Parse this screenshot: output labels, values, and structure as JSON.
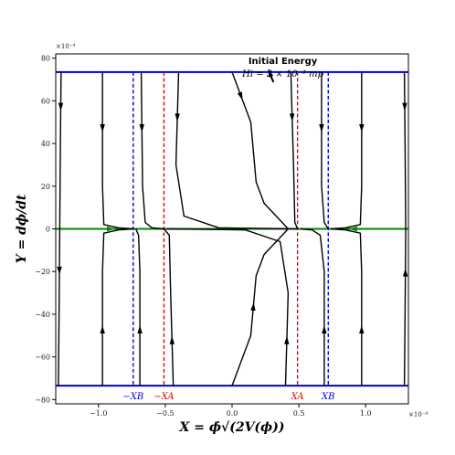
{
  "chart_data": {
    "type": "line",
    "title": "",
    "xlabel": "X = ϕ̇√(2V(ϕ))",
    "ylabel": "Y = dϕ/dt",
    "x_multiplier": "×10⁻⁴",
    "y_multiplier": "×10⁻⁴",
    "xlim": [
      -1.32,
      1.32
    ],
    "ylim": [
      -82,
      82
    ],
    "x_ticks": [
      -1.0,
      -0.5,
      0.0,
      0.5,
      1.0
    ],
    "x_tick_labels": [
      "−1.0",
      "−0.5",
      "0.0",
      "0.5",
      "1.0"
    ],
    "y_ticks": [
      -80,
      -60,
      -40,
      -20,
      0,
      20,
      40,
      60,
      80
    ],
    "y_tick_labels": [
      "−80",
      "−60",
      "−40",
      "−20",
      "0",
      "20",
      "40",
      "60",
      "80"
    ],
    "grid": false,
    "annotation": {
      "title": "Initial Energy",
      "subtitle": "Hi = 3 × 10⁻³ mp",
      "arrow_from": [
        0.32,
        70
      ],
      "arrow_to": [
        0.28,
        74
      ]
    },
    "horizontal_lines": [
      {
        "y": 73.5,
        "color": "#0000dd"
      },
      {
        "y": -73.5,
        "color": "#0000dd"
      },
      {
        "y": 0,
        "color": "#008800"
      }
    ],
    "vertical_lines": [
      {
        "x": -0.74,
        "color": "#0000dd",
        "label": "−XB"
      },
      {
        "x": -0.51,
        "color": "#dd0000",
        "label": "−XA"
      },
      {
        "x": 0.49,
        "color": "#dd0000",
        "label": "XA"
      },
      {
        "x": 0.72,
        "color": "#0000dd",
        "label": "XB"
      }
    ],
    "trajectories": [
      {
        "points": [
          [
            -1.28,
            73.5
          ],
          [
            -1.285,
            40
          ],
          [
            -1.29,
            0
          ]
        ],
        "arrow_at": 1,
        "arrow_dir": "down"
      },
      {
        "points": [
          [
            -1.29,
            0
          ],
          [
            -1.295,
            -40
          ],
          [
            -1.3,
            -73.5
          ]
        ],
        "arrow_at": 1,
        "arrow_dir": "down"
      },
      {
        "points": [
          [
            -0.97,
            73.5
          ],
          [
            -0.97,
            20
          ],
          [
            -0.96,
            2
          ],
          [
            -0.85,
            0.5
          ],
          [
            -0.74,
            0
          ]
        ],
        "arrow_at": 1,
        "arrow_dir": "down"
      },
      {
        "points": [
          [
            -0.97,
            -73.5
          ],
          [
            -0.97,
            -20
          ],
          [
            -0.96,
            -2
          ],
          [
            -0.85,
            -0.5
          ],
          [
            -0.74,
            0
          ]
        ],
        "arrow_at": 1,
        "arrow_dir": "up"
      },
      {
        "points": [
          [
            -0.68,
            73.5
          ],
          [
            -0.67,
            20
          ],
          [
            -0.65,
            3
          ],
          [
            -0.6,
            0.5
          ],
          [
            -0.51,
            0
          ]
        ],
        "arrow_at": 1,
        "arrow_dir": "down"
      },
      {
        "points": [
          [
            -0.69,
            -73.5
          ],
          [
            -0.69,
            -20
          ],
          [
            -0.7,
            -3
          ],
          [
            -0.72,
            0
          ]
        ],
        "arrow_at": 1,
        "arrow_dir": "up"
      },
      {
        "points": [
          [
            -0.4,
            73.5
          ],
          [
            -0.42,
            30
          ],
          [
            -0.36,
            6
          ],
          [
            -0.1,
            0.5
          ],
          [
            0.49,
            0
          ]
        ],
        "arrow_at": 1,
        "arrow_dir": "down"
      },
      {
        "points": [
          [
            -0.44,
            -73.5
          ],
          [
            -0.46,
            -30
          ],
          [
            -0.47,
            -3
          ],
          [
            -0.51,
            0
          ]
        ],
        "arrow_at": 1,
        "arrow_dir": "up"
      },
      {
        "points": [
          [
            0.0,
            73.5
          ],
          [
            0.14,
            50
          ],
          [
            0.18,
            22
          ],
          [
            0.24,
            12
          ],
          [
            0.36,
            4
          ],
          [
            0.42,
            0
          ]
        ],
        "arrow_at": 1,
        "arrow_dir": "down"
      },
      {
        "points": [
          [
            0.42,
            0
          ],
          [
            0.36,
            -4
          ],
          [
            0.24,
            -12
          ],
          [
            0.18,
            -22
          ],
          [
            0.14,
            -50
          ],
          [
            0.0,
            -73.5
          ]
        ],
        "arrow_at": 4,
        "arrow_dir": "up"
      },
      {
        "points": [
          [
            0.44,
            73.5
          ],
          [
            0.46,
            30
          ],
          [
            0.47,
            3
          ],
          [
            0.49,
            0
          ]
        ],
        "arrow_at": 1,
        "arrow_dir": "down"
      },
      {
        "points": [
          [
            0.4,
            -73.5
          ],
          [
            0.42,
            -30
          ],
          [
            0.36,
            -6
          ],
          [
            0.1,
            -0.5
          ],
          [
            -0.49,
            0
          ]
        ],
        "arrow_at": 1,
        "arrow_dir": "up"
      },
      {
        "points": [
          [
            0.67,
            73.5
          ],
          [
            0.67,
            20
          ],
          [
            0.69,
            3
          ],
          [
            0.72,
            0
          ]
        ],
        "arrow_at": 1,
        "arrow_dir": "down"
      },
      {
        "points": [
          [
            0.69,
            -73.5
          ],
          [
            0.69,
            -20
          ],
          [
            0.66,
            -3
          ],
          [
            0.6,
            -0.5
          ],
          [
            0.51,
            0
          ]
        ],
        "arrow_at": 1,
        "arrow_dir": "up"
      },
      {
        "points": [
          [
            0.97,
            73.5
          ],
          [
            0.97,
            20
          ],
          [
            0.96,
            2
          ],
          [
            0.85,
            0.5
          ],
          [
            0.74,
            0
          ]
        ],
        "arrow_at": 1,
        "arrow_dir": "down"
      },
      {
        "points": [
          [
            0.97,
            -73.5
          ],
          [
            0.97,
            -20
          ],
          [
            0.96,
            -2
          ],
          [
            0.85,
            -0.5
          ],
          [
            0.74,
            0
          ]
        ],
        "arrow_at": 1,
        "arrow_dir": "up"
      },
      {
        "points": [
          [
            1.29,
            73.5
          ],
          [
            1.295,
            40
          ],
          [
            1.3,
            0
          ]
        ],
        "arrow_at": 1,
        "arrow_dir": "down"
      },
      {
        "points": [
          [
            1.3,
            0
          ],
          [
            1.295,
            -40
          ],
          [
            1.29,
            -73.5
          ]
        ],
        "arrow_at": 1,
        "arrow_dir": "up"
      }
    ],
    "flow_arrows": [
      {
        "x": -0.9,
        "y": 0,
        "dir": "right",
        "color": "#008800"
      },
      {
        "x": 0.9,
        "y": 0,
        "dir": "left",
        "color": "#008800"
      }
    ]
  }
}
